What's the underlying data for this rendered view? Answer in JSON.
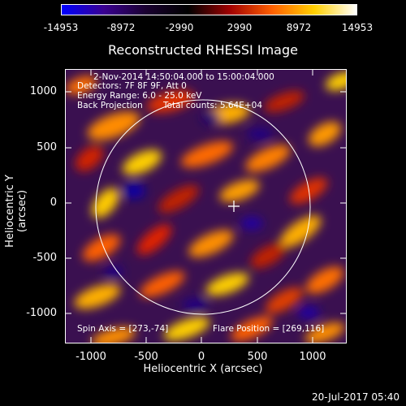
{
  "colorbar": {
    "ticks": [
      "-14953",
      "-8972",
      "-2990",
      "2990",
      "8972",
      "14953"
    ],
    "colors": [
      "#0000ff",
      "#3a0090",
      "#1a0030",
      "#000000",
      "#a00000",
      "#ff6000",
      "#ffd000",
      "#ffffff"
    ]
  },
  "title": "Reconstructed RHESSI Image",
  "info": {
    "line1": "2-Nov-2014 14:50:04.000 to 15:00:04.000",
    "line2": "Detectors: 7F 8F 9F, Att 0",
    "line3": "Energy Range: 6.0 - 25.0 keV",
    "line4a": "Back Projection",
    "line4b": "Total counts: 5.64E+04",
    "spin_axis": "Spin Axis = [273,-74]",
    "flare_position": "Flare Position = [269,116]"
  },
  "axes": {
    "xlabel": "Heliocentric X (arcsec)",
    "ylabel": "Heliocentric Y (arcsec)",
    "xticks": [
      "-1000",
      "-500",
      "0",
      "500",
      "1000"
    ],
    "yticks": [
      "1000",
      "500",
      "0",
      "-500",
      "-1000"
    ]
  },
  "timestamp": "20-Jul-2017 05:40"
}
